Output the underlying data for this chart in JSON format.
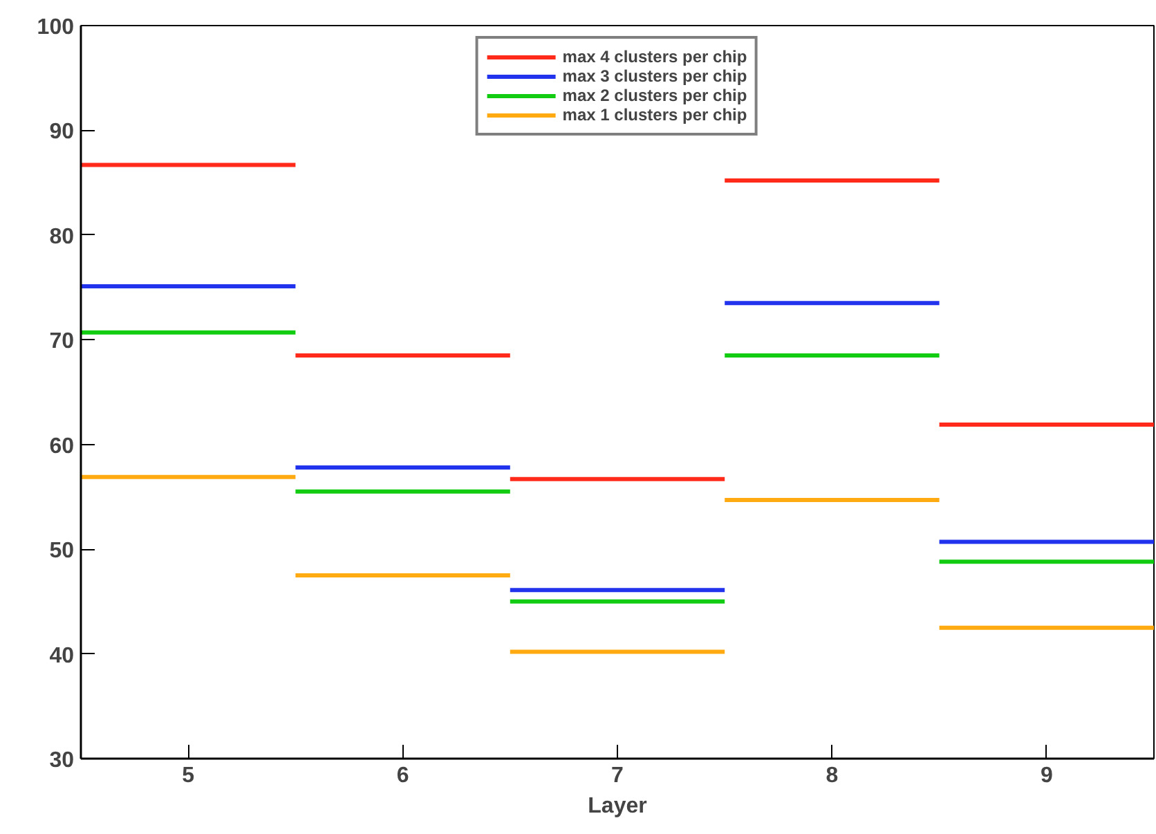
{
  "chart_data": {
    "type": "step",
    "xlabel": "Layer",
    "x": [
      4.5,
      5.5,
      6.5,
      7.5,
      8.5,
      9.5
    ],
    "xlim": [
      4.5,
      9.5
    ],
    "xticks": [
      5,
      6,
      7,
      8,
      9
    ],
    "ylim": [
      30,
      100
    ],
    "yticks": [
      30,
      40,
      50,
      60,
      70,
      80,
      90,
      100
    ],
    "grid": false,
    "legend": "top",
    "series": [
      {
        "name": "max 4 clusters per chip",
        "color": "#ff2a1a",
        "values": [
          86.7,
          68.5,
          56.7,
          85.2,
          61.9,
          61.9
        ]
      },
      {
        "name": "max 3 clusters per chip",
        "color": "#2233ee",
        "values": [
          75.1,
          57.8,
          46.1,
          73.5,
          50.7,
          50.7
        ]
      },
      {
        "name": "max 2 clusters per chip",
        "color": "#11cc11",
        "values": [
          70.7,
          55.5,
          45.0,
          68.5,
          48.8,
          48.8
        ]
      },
      {
        "name": "max 1 clusters per chip",
        "color": "#ffaa11",
        "values": [
          56.9,
          47.5,
          40.2,
          54.7,
          42.5,
          42.5
        ]
      }
    ]
  }
}
